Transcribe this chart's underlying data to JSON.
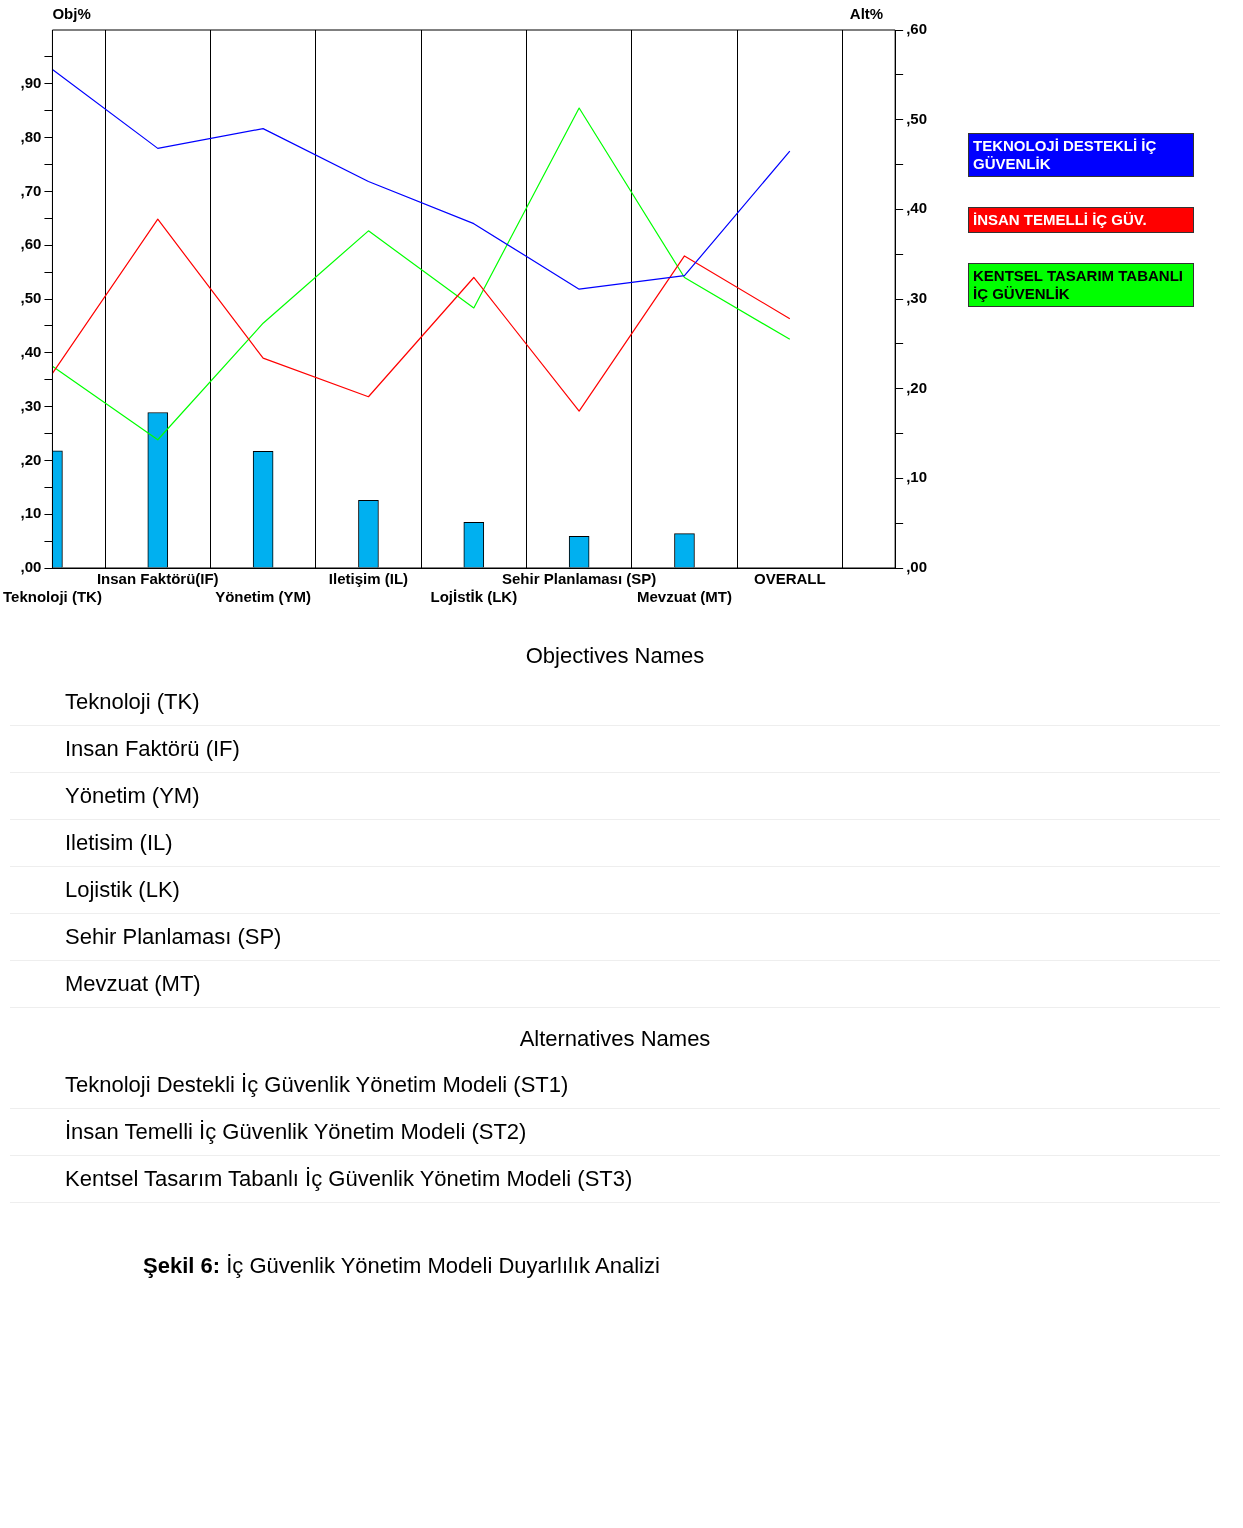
{
  "chart_data": {
    "type": "bar",
    "ylabel": "Obj%",
    "y2label": "Alt%",
    "categories": [
      "Teknoloji (TK)",
      "Insan Faktörü(IF)",
      "Yönetim (YM)",
      "Iletişim (IL)",
      "Lojİstİk (LK)",
      "Sehir Planlaması (SP)",
      "Mevzuat (MT)",
      "OVERALL"
    ],
    "series": [
      {
        "color": "#00b0f0",
        "values": [
          21.8,
          28.9,
          21.7,
          12.6,
          8.5,
          5.9,
          6.4,
          null
        ]
      },
      {
        "type": "line",
        "axis": "y2",
        "name": "TEKNOLOJİ DESTEKLİ İÇ GÜVENLİK",
        "color": "#0000ff",
        "values": [
          55.6,
          46.8,
          49.0,
          43.1,
          38.4,
          31.1,
          32.6,
          46.5
        ]
      },
      {
        "type": "line",
        "axis": "y2",
        "name": "İNSAN TEMELLİ İÇ GÜV.",
        "color": "#ff0000",
        "values": [
          21.7,
          38.9,
          23.4,
          19.1,
          32.4,
          17.5,
          34.8,
          27.8
        ]
      },
      {
        "type": "line",
        "axis": "y2",
        "name": "KENTSEL TASARIM TABANLI İÇ GÜVENLİK",
        "color": "#00ff00",
        "values": [
          22.5,
          14.3,
          27.3,
          37.6,
          29.0,
          51.3,
          32.4,
          25.5
        ]
      }
    ],
    "ylim": [
      0,
      100
    ],
    "yticks": [
      {
        "value": 0,
        "label": ",00"
      },
      {
        "value": 5,
        "label": null
      },
      {
        "value": 10,
        "label": ",10"
      },
      {
        "value": 15,
        "label": null
      },
      {
        "value": 20,
        "label": ",20"
      },
      {
        "value": 25,
        "label": null
      },
      {
        "value": 30,
        "label": ",30"
      },
      {
        "value": 35,
        "label": null
      },
      {
        "value": 40,
        "label": ",40"
      },
      {
        "value": 45,
        "label": null
      },
      {
        "value": 50,
        "label": ",50"
      },
      {
        "value": 55,
        "label": null
      },
      {
        "value": 60,
        "label": ",60"
      },
      {
        "value": 65,
        "label": null
      },
      {
        "value": 70,
        "label": ",70"
      },
      {
        "value": 75,
        "label": null
      },
      {
        "value": 80,
        "label": ",80"
      },
      {
        "value": 85,
        "label": null
      },
      {
        "value": 90,
        "label": ",90"
      },
      {
        "value": 95,
        "label": null
      }
    ],
    "y2lim": [
      0,
      60
    ],
    "y2ticks": [
      {
        "value": 0,
        "label": ",00"
      },
      {
        "value": 5,
        "label": null
      },
      {
        "value": 10,
        "label": ",10"
      },
      {
        "value": 15,
        "label": null
      },
      {
        "value": 20,
        "label": ",20"
      },
      {
        "value": 25,
        "label": null
      },
      {
        "value": 30,
        "label": ",30"
      },
      {
        "value": 35,
        "label": null
      },
      {
        "value": 40,
        "label": ",40"
      },
      {
        "value": 45,
        "label": null
      },
      {
        "value": 50,
        "label": ",50"
      },
      {
        "value": 55,
        "label": null
      },
      {
        "value": 60,
        "label": ",60"
      }
    ],
    "grid": "x",
    "legend": "right",
    "marker": "none",
    "line_style": "solid",
    "annotations": [
      "Objectives Names",
      "Teknoloji (TK)",
      "Insan Faktörü (IF)",
      "Yönetim (YM)",
      "Iletisim (IL)",
      "Lojistik (LK)",
      "Sehir Planlaması (SP)",
      "Mevzuat (MT)",
      "Alternatives Names",
      "Teknoloji Destekli İç Güvenlik Yönetim Modeli (ST1)",
      "İnsan Temelli İç Güvenlik Yönetim Modeli (ST2)",
      "Kentsel Tasarım Tabanlı İç Güvenlik Yönetim Modeli (ST3)",
      "Şekil 6: İç Güvenlik Yönetim Modeli Duyarlılık Analizi"
    ]
  }
}
